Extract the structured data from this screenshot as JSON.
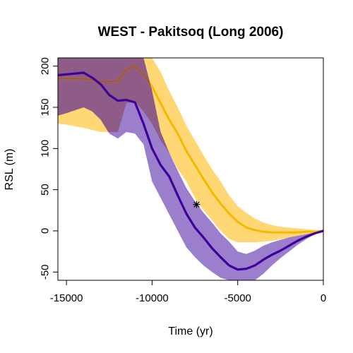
{
  "chart_data": {
    "type": "line",
    "title": "WEST - Pakitsoq (Long 2006)",
    "xlabel": "Time (yr)",
    "ylabel": "RSL (m)",
    "xlim": [
      -15500,
      0
    ],
    "ylim": [
      -60,
      210
    ],
    "xticks": [
      -15000,
      -10000,
      -5000,
      0
    ],
    "xtick_labels": [
      "-15000",
      "-10000",
      "-5000",
      "0"
    ],
    "yticks": [
      -50,
      0,
      50,
      100,
      150,
      200
    ],
    "ytick_labels": [
      "-50",
      "0",
      "50",
      "100",
      "150",
      "200"
    ],
    "grid": false,
    "colors": {
      "orange_line": "#f5b800",
      "orange_band": "#ffd875",
      "purple_line": "#3d0099",
      "purple_band": "#9b7fcc",
      "overlap_band": "#8e5c86",
      "overlap_line": "#9e5a3a",
      "marker": "#000000"
    },
    "series": [
      {
        "style": "orange",
        "x": [
          -15500,
          -15000,
          -14000,
          -13000,
          -12000,
          -11500,
          -11000,
          -10500,
          -10000,
          -9500,
          -9000,
          -8500,
          -8000,
          -7500,
          -7000,
          -6500,
          -6000,
          -5500,
          -5000,
          -4500,
          -4000,
          -3500,
          -3000,
          -2500,
          -2000,
          -1500,
          -1000,
          -500,
          0
        ],
        "y": [
          185,
          185,
          185,
          181,
          182,
          196,
          200,
          190,
          175,
          155,
          135,
          118,
          97,
          80,
          63,
          47,
          33,
          21,
          11,
          4,
          1,
          -1,
          -2,
          -2,
          -2,
          -2,
          -1,
          -1,
          0
        ],
        "upper": [
          210,
          210,
          210,
          210,
          210,
          210,
          210,
          210,
          210,
          193,
          170,
          150,
          128,
          110,
          92,
          75,
          60,
          43,
          30,
          22,
          15,
          10,
          7,
          5,
          4,
          3,
          2,
          1,
          0
        ],
        "lower": [
          130,
          129,
          125,
          120,
          120,
          155,
          157,
          145,
          130,
          110,
          95,
          75,
          60,
          40,
          25,
          13,
          0,
          -10,
          -14,
          -14,
          -14,
          -13,
          -12,
          -10,
          -8,
          -6,
          -4,
          -2,
          0
        ]
      },
      {
        "style": "purple",
        "x": [
          -15500,
          -15000,
          -14000,
          -13500,
          -13000,
          -12500,
          -12000,
          -11500,
          -11000,
          -10500,
          -10000,
          -9500,
          -9000,
          -8500,
          -8000,
          -7500,
          -7000,
          -6500,
          -6000,
          -5500,
          -5000,
          -4500,
          -4000,
          -3500,
          -3000,
          -2500,
          -2000,
          -1500,
          -1000,
          -500,
          0
        ],
        "y": [
          189,
          190,
          192,
          186,
          178,
          165,
          158,
          159,
          156,
          130,
          100,
          80,
          66,
          43,
          21,
          4,
          -8,
          -21,
          -32,
          -42,
          -47,
          -46,
          -42,
          -35,
          -29,
          -24,
          -18,
          -12,
          -7,
          -3,
          0
        ],
        "upper": [
          210,
          210,
          210,
          210,
          210,
          210,
          210,
          210,
          210,
          210,
          170,
          120,
          95,
          73,
          52,
          36,
          22,
          10,
          -3,
          -13,
          -25,
          -28,
          -24,
          -18,
          -14,
          -11,
          -8,
          -6,
          -4,
          -2,
          0
        ],
        "lower": [
          140,
          143,
          150,
          145,
          135,
          118,
          112,
          120,
          118,
          105,
          60,
          40,
          20,
          0,
          -20,
          -32,
          -42,
          -50,
          -57,
          -60,
          -60,
          -60,
          -60,
          -52,
          -42,
          -33,
          -25,
          -17,
          -10,
          -4,
          0
        ]
      }
    ],
    "points": [
      {
        "x": -7400,
        "y": 32,
        "marker": "*"
      }
    ]
  }
}
